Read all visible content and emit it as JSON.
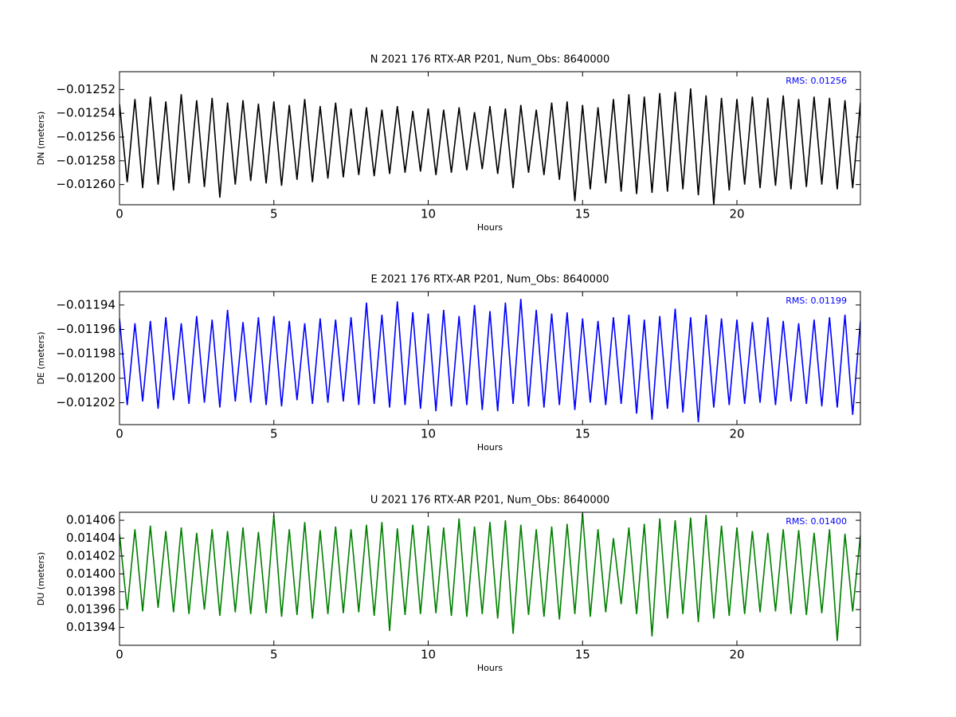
{
  "chart_data": [
    {
      "type": "line",
      "title": "N 2021 176 RTX-AR  P201, Num_Obs: 8640000",
      "xlabel": "Hours",
      "ylabel": "DN (meters)",
      "annotation": "RMS:  0.01256",
      "annotation_color": "#0000ff",
      "color": "#000000",
      "xlim": [
        0,
        24
      ],
      "xticks": [
        0,
        5,
        10,
        15,
        20
      ],
      "ylim": [
        -0.012617,
        -0.012505
      ],
      "yticks": [
        {
          "value": -0.01252,
          "label": "−0.01252"
        },
        {
          "value": -0.01254,
          "label": "−0.01254"
        },
        {
          "value": -0.01256,
          "label": "−0.01256"
        },
        {
          "value": -0.01258,
          "label": "−0.01258"
        },
        {
          "value": -0.0126,
          "label": "−0.01260"
        }
      ],
      "x": [
        0,
        0.25,
        0.5,
        0.75,
        1,
        1.25,
        1.5,
        1.75,
        2,
        2.25,
        2.5,
        2.75,
        3,
        3.25,
        3.5,
        3.75,
        4,
        4.25,
        4.5,
        4.75,
        5,
        5.25,
        5.5,
        5.75,
        6,
        6.25,
        6.5,
        6.75,
        7,
        7.25,
        7.5,
        7.75,
        8,
        8.25,
        8.5,
        8.75,
        9,
        9.25,
        9.5,
        9.75,
        10,
        10.25,
        10.5,
        10.75,
        11,
        11.25,
        11.5,
        11.75,
        12,
        12.25,
        12.5,
        12.75,
        13,
        13.25,
        13.5,
        13.75,
        14,
        14.25,
        14.5,
        14.75,
        15,
        15.25,
        15.5,
        15.75,
        16,
        16.25,
        16.5,
        16.75,
        17,
        17.25,
        17.5,
        17.75,
        18,
        18.25,
        18.5,
        18.75,
        19,
        19.25,
        19.5,
        19.75,
        20,
        20.25,
        20.5,
        20.75,
        21,
        21.25,
        21.5,
        21.75,
        22,
        22.25,
        22.5,
        22.75,
        23,
        23.25,
        23.5,
        23.75,
        24
      ],
      "values": [
        -0.012532,
        -0.012598,
        -0.012528,
        -0.012603,
        -0.012526,
        -0.0126,
        -0.01253,
        -0.012605,
        -0.012524,
        -0.012599,
        -0.012529,
        -0.012602,
        -0.012527,
        -0.012611,
        -0.012531,
        -0.0126,
        -0.012529,
        -0.012597,
        -0.012532,
        -0.012599,
        -0.01253,
        -0.012601,
        -0.012533,
        -0.012596,
        -0.012528,
        -0.012598,
        -0.012534,
        -0.012595,
        -0.012531,
        -0.012594,
        -0.012536,
        -0.012592,
        -0.012535,
        -0.012593,
        -0.012537,
        -0.012591,
        -0.012534,
        -0.01259,
        -0.012538,
        -0.012589,
        -0.012536,
        -0.012592,
        -0.012537,
        -0.01259,
        -0.012535,
        -0.012588,
        -0.012539,
        -0.012587,
        -0.012534,
        -0.012591,
        -0.012536,
        -0.012603,
        -0.012533,
        -0.01259,
        -0.012537,
        -0.012592,
        -0.012531,
        -0.012596,
        -0.01253,
        -0.012614,
        -0.012533,
        -0.012604,
        -0.012535,
        -0.012599,
        -0.012528,
        -0.012606,
        -0.012524,
        -0.012608,
        -0.012526,
        -0.012607,
        -0.012523,
        -0.012606,
        -0.012522,
        -0.012604,
        -0.012519,
        -0.012609,
        -0.012525,
        -0.012617,
        -0.012527,
        -0.012605,
        -0.012528,
        -0.0126,
        -0.012526,
        -0.012603,
        -0.012527,
        -0.012601,
        -0.012525,
        -0.012604,
        -0.012528,
        -0.012602,
        -0.012526,
        -0.0126,
        -0.012527,
        -0.012604,
        -0.012529,
        -0.012603,
        -0.012531
      ]
    },
    {
      "type": "line",
      "title": "E 2021 176 RTX-AR  P201, Num_Obs: 8640000",
      "xlabel": "Hours",
      "ylabel": "DE (meters)",
      "annotation": "RMS:  0.01199",
      "annotation_color": "#0000ff",
      "color": "#0000ff",
      "xlim": [
        0,
        24
      ],
      "xticks": [
        0,
        5,
        10,
        15,
        20
      ],
      "ylim": [
        -0.012038,
        -0.011929
      ],
      "yticks": [
        {
          "value": -0.01194,
          "label": "−0.01194"
        },
        {
          "value": -0.01196,
          "label": "−0.01196"
        },
        {
          "value": -0.01198,
          "label": "−0.01198"
        },
        {
          "value": -0.012,
          "label": "−0.01200"
        },
        {
          "value": -0.01202,
          "label": "−0.01202"
        }
      ],
      "x": [
        0,
        0.25,
        0.5,
        0.75,
        1,
        1.25,
        1.5,
        1.75,
        2,
        2.25,
        2.5,
        2.75,
        3,
        3.25,
        3.5,
        3.75,
        4,
        4.25,
        4.5,
        4.75,
        5,
        5.25,
        5.5,
        5.75,
        6,
        6.25,
        6.5,
        6.75,
        7,
        7.25,
        7.5,
        7.75,
        8,
        8.25,
        8.5,
        8.75,
        9,
        9.25,
        9.5,
        9.75,
        10,
        10.25,
        10.5,
        10.75,
        11,
        11.25,
        11.5,
        11.75,
        12,
        12.25,
        12.5,
        12.75,
        13,
        13.25,
        13.5,
        13.75,
        14,
        14.25,
        14.5,
        14.75,
        15,
        15.25,
        15.5,
        15.75,
        16,
        16.25,
        16.5,
        16.75,
        17,
        17.25,
        17.5,
        17.75,
        18,
        18.25,
        18.5,
        18.75,
        19,
        19.25,
        19.5,
        19.75,
        20,
        20.25,
        20.5,
        20.75,
        21,
        21.25,
        21.5,
        21.75,
        22,
        22.25,
        22.5,
        22.75,
        23,
        23.25,
        23.5,
        23.75,
        24
      ],
      "values": [
        -0.011951,
        -0.012022,
        -0.011955,
        -0.012019,
        -0.011953,
        -0.012025,
        -0.01195,
        -0.012018,
        -0.011955,
        -0.012021,
        -0.011949,
        -0.01202,
        -0.011952,
        -0.012024,
        -0.011944,
        -0.012019,
        -0.011954,
        -0.01202,
        -0.01195,
        -0.012022,
        -0.011949,
        -0.012023,
        -0.011953,
        -0.012018,
        -0.011955,
        -0.012021,
        -0.011951,
        -0.01202,
        -0.011952,
        -0.012019,
        -0.01195,
        -0.012022,
        -0.011938,
        -0.012021,
        -0.011948,
        -0.012024,
        -0.011937,
        -0.012022,
        -0.011946,
        -0.012025,
        -0.011947,
        -0.012027,
        -0.011944,
        -0.012023,
        -0.011949,
        -0.012022,
        -0.01194,
        -0.012026,
        -0.011945,
        -0.012027,
        -0.011938,
        -0.012021,
        -0.011935,
        -0.012023,
        -0.011944,
        -0.012024,
        -0.011947,
        -0.012022,
        -0.011946,
        -0.012026,
        -0.011951,
        -0.01202,
        -0.011953,
        -0.012022,
        -0.01195,
        -0.012021,
        -0.011948,
        -0.012029,
        -0.011952,
        -0.012034,
        -0.011949,
        -0.012025,
        -0.011943,
        -0.012028,
        -0.01195,
        -0.012036,
        -0.011948,
        -0.012024,
        -0.011951,
        -0.012022,
        -0.011952,
        -0.012021,
        -0.011954,
        -0.01202,
        -0.01195,
        -0.012022,
        -0.011953,
        -0.012019,
        -0.011955,
        -0.012021,
        -0.011952,
        -0.012023,
        -0.01195,
        -0.012024,
        -0.011948,
        -0.01203,
        -0.011953
      ]
    },
    {
      "type": "line",
      "title": "U 2021 176 RTX-AR  P201, Num_Obs: 8640000",
      "xlabel": "Hours",
      "ylabel": "DU (meters)",
      "annotation": "RMS:  0.01400",
      "annotation_color": "#0000ff",
      "color": "#008000",
      "xlim": [
        0,
        24
      ],
      "xticks": [
        0,
        5,
        10,
        15,
        20
      ],
      "ylim": [
        0.01392,
        0.014069
      ],
      "yticks": [
        0.01406,
        0.01404,
        0.01402,
        {
          "value": 0.014,
          "label": "0.01400"
        },
        0.01398,
        0.01396,
        0.01394
      ],
      "x": [
        0,
        0.25,
        0.5,
        0.75,
        1,
        1.25,
        1.5,
        1.75,
        2,
        2.25,
        2.5,
        2.75,
        3,
        3.25,
        3.5,
        3.75,
        4,
        4.25,
        4.5,
        4.75,
        5,
        5.25,
        5.5,
        5.75,
        6,
        6.25,
        6.5,
        6.75,
        7,
        7.25,
        7.5,
        7.75,
        8,
        8.25,
        8.5,
        8.75,
        9,
        9.25,
        9.5,
        9.75,
        10,
        10.25,
        10.5,
        10.75,
        11,
        11.25,
        11.5,
        11.75,
        12,
        12.25,
        12.5,
        12.75,
        13,
        13.25,
        13.5,
        13.75,
        14,
        14.25,
        14.5,
        14.75,
        15,
        15.25,
        15.5,
        15.75,
        16,
        16.25,
        16.5,
        16.75,
        17,
        17.25,
        17.5,
        17.75,
        18,
        18.25,
        18.5,
        18.75,
        19,
        19.25,
        19.5,
        19.75,
        20,
        20.25,
        20.5,
        20.75,
        21,
        21.25,
        21.5,
        21.75,
        22,
        22.25,
        22.5,
        22.75,
        23,
        23.25,
        23.5,
        23.75,
        24
      ],
      "values": [
        0.014045,
        0.01396,
        0.01405,
        0.013958,
        0.014054,
        0.013962,
        0.014048,
        0.013957,
        0.014052,
        0.013955,
        0.014046,
        0.01396,
        0.01405,
        0.013953,
        0.014048,
        0.013957,
        0.014052,
        0.013955,
        0.014047,
        0.013956,
        0.014066,
        0.013952,
        0.01405,
        0.013954,
        0.014058,
        0.01395,
        0.014049,
        0.013955,
        0.014053,
        0.013956,
        0.01405,
        0.013957,
        0.014055,
        0.013953,
        0.014058,
        0.013936,
        0.014051,
        0.013954,
        0.014055,
        0.013955,
        0.014054,
        0.013956,
        0.014052,
        0.013953,
        0.014062,
        0.013952,
        0.014053,
        0.013955,
        0.014058,
        0.01395,
        0.01406,
        0.013933,
        0.014055,
        0.013954,
        0.01405,
        0.013952,
        0.014053,
        0.013949,
        0.014056,
        0.013955,
        0.014068,
        0.013952,
        0.01405,
        0.013957,
        0.01404,
        0.013966,
        0.014052,
        0.013955,
        0.014056,
        0.01393,
        0.014062,
        0.01395,
        0.01406,
        0.013955,
        0.014063,
        0.013946,
        0.014066,
        0.01395,
        0.014054,
        0.013953,
        0.014052,
        0.013955,
        0.014048,
        0.013957,
        0.014046,
        0.013958,
        0.01405,
        0.013955,
        0.014049,
        0.013954,
        0.014046,
        0.013956,
        0.01405,
        0.013925,
        0.014045,
        0.013958,
        0.014043
      ]
    }
  ]
}
